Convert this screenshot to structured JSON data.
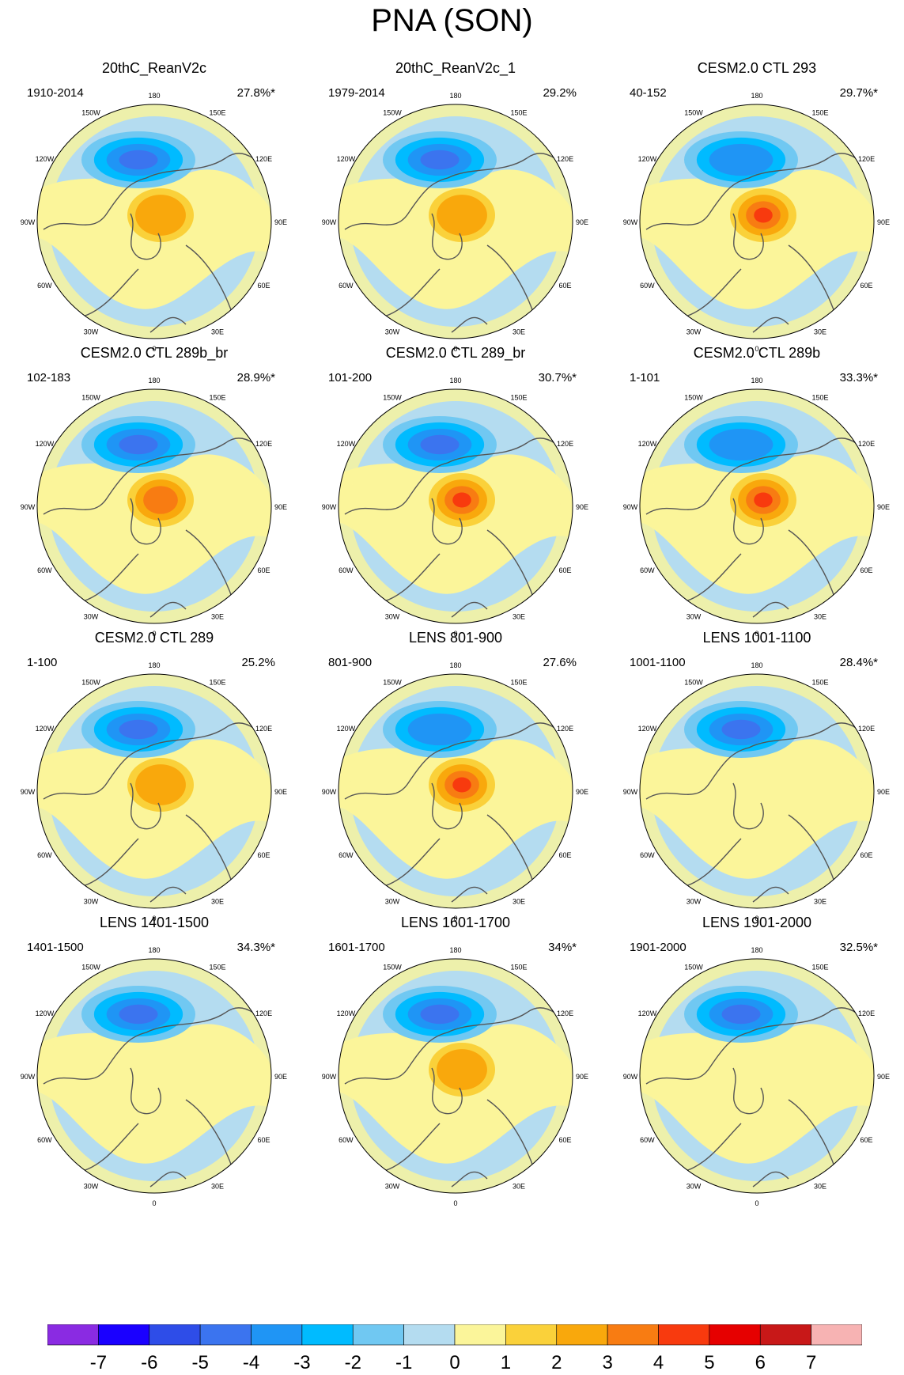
{
  "figure": {
    "title": "PNA (SON)",
    "longitude_labels": [
      "180",
      "150E",
      "120E",
      "90E",
      "60E",
      "30E",
      "0",
      "30W",
      "60W",
      "90W",
      "120W",
      "150W"
    ]
  },
  "panels": [
    {
      "title": "20thC_ReanV2c",
      "period": "1910-2014",
      "variance": "27.8%*",
      "low_center_min": -4,
      "high_center_max": 2
    },
    {
      "title": "20thC_ReanV2c_1",
      "period": "1979-2014",
      "variance": "29.2%",
      "low_center_min": -4,
      "high_center_max": 2
    },
    {
      "title": "CESM2.0 CTL 293",
      "period": "40-152",
      "variance": "29.7%*",
      "low_center_min": -3,
      "high_center_max": 4
    },
    {
      "title": "CESM2.0 CTL 289b_br",
      "period": "102-183",
      "variance": "28.9%*",
      "low_center_min": -4,
      "high_center_max": 3
    },
    {
      "title": "CESM2.0 CTL 289_br",
      "period": "101-200",
      "variance": "30.7%*",
      "low_center_min": -4,
      "high_center_max": 4
    },
    {
      "title": "CESM2.0 CTL 289b",
      "period": "1-101",
      "variance": "33.3%*",
      "low_center_min": -3,
      "high_center_max": 4
    },
    {
      "title": "CESM2.0 CTL 289",
      "period": "1-100",
      "variance": "25.2%",
      "low_center_min": -4,
      "high_center_max": 2
    },
    {
      "title": "LENS 801-900",
      "period": "801-900",
      "variance": "27.6%",
      "low_center_min": -3,
      "high_center_max": 4
    },
    {
      "title": "LENS 1001-1100",
      "period": "1001-1100",
      "variance": "28.4%*",
      "low_center_min": -4,
      "high_center_max": 0
    },
    {
      "title": "LENS 1401-1500",
      "period": "1401-1500",
      "variance": "34.3%*",
      "low_center_min": -4,
      "high_center_max": 0
    },
    {
      "title": "LENS 1601-1700",
      "period": "1601-1700",
      "variance": "34%*",
      "low_center_min": -4,
      "high_center_max": 2
    },
    {
      "title": "LENS 1901-2000",
      "period": "1901-2000",
      "variance": "32.5%*",
      "low_center_min": -4,
      "high_center_max": 0
    }
  ],
  "colorbar": {
    "labels": [
      "-7",
      "-6",
      "-5",
      "-4",
      "-3",
      "-2",
      "-1",
      "0",
      "1",
      "2",
      "3",
      "4",
      "5",
      "6",
      "7"
    ],
    "colors": [
      "#8a2be2",
      "#1a00ff",
      "#2e4de8",
      "#3b74ef",
      "#1f95f5",
      "#00bbff",
      "#70c8f2",
      "#b4dcf0",
      "#fbf59a",
      "#fad13a",
      "#f9a80c",
      "#f87c12",
      "#f83a0e",
      "#e60000",
      "#c81818",
      "#f7b3b3"
    ]
  },
  "colors": {
    "land_outline": "#555555",
    "globe_outline": "#000000",
    "positive_weak": "#fbf59a",
    "negative_weak": "#b4dcf0"
  }
}
